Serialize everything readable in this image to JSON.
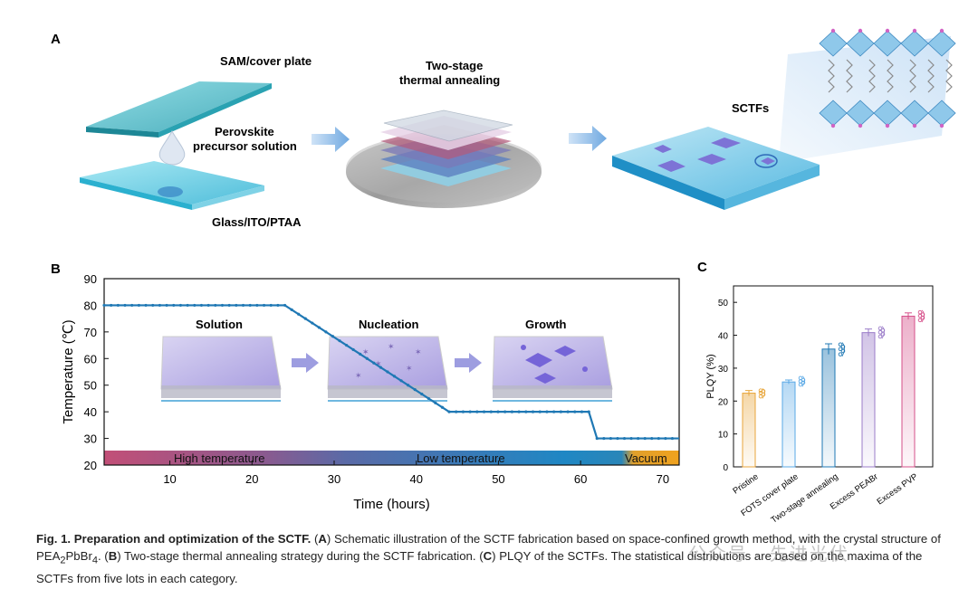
{
  "panelA": {
    "letter": "A",
    "labels": {
      "sam": "SAM/cover plate",
      "precursor_line1": "Perovskite",
      "precursor_line2": "precursor solution",
      "glass": "Glass/ITO/PTAA",
      "annealing_line1": "Two-stage",
      "annealing_line2": "thermal annealing",
      "sctfs": "SCTFs"
    }
  },
  "panelB": {
    "letter": "B",
    "insets": [
      "Solution",
      "Nucleation",
      "Growth"
    ],
    "bands": [
      "High temperature",
      "Low temperature",
      "Vacuum"
    ]
  },
  "panelC": {
    "letter": "C"
  },
  "chart_data": [
    {
      "type": "line",
      "panel": "B",
      "xlabel": "Time (hours)",
      "ylabel": "Temperature (℃)",
      "xlim": [
        2,
        72
      ],
      "ylim": [
        20,
        90
      ],
      "xticks": [
        10,
        20,
        30,
        40,
        50,
        60,
        70
      ],
      "yticks": [
        20,
        30,
        40,
        50,
        60,
        70,
        80,
        90
      ],
      "x": [
        2,
        24,
        44,
        61,
        62,
        72
      ],
      "y": [
        80,
        80,
        40,
        40,
        30,
        30
      ],
      "color": "#1f78b4"
    },
    {
      "type": "bar",
      "panel": "C",
      "ylabel": "PLQY (%)",
      "ylim": [
        0,
        55
      ],
      "yticks": [
        0,
        10,
        20,
        30,
        40,
        50
      ],
      "categories": [
        "Pristine",
        "FOTS cover plate",
        "Two-stage annealing",
        "Excess PEABr",
        "Excess PVP"
      ],
      "values": [
        22.4,
        25.8,
        35.8,
        40.8,
        45.8
      ],
      "errors": [
        0.8,
        0.6,
        1.6,
        1.1,
        1.0
      ],
      "points": [
        [
          21.4,
          22.0,
          22.5,
          23.0,
          23.2
        ],
        [
          25.0,
          25.6,
          26.0,
          26.4,
          27.0
        ],
        [
          34.2,
          35.2,
          35.8,
          36.5,
          37.2
        ],
        [
          39.6,
          40.3,
          40.9,
          41.5,
          42.1
        ],
        [
          44.6,
          45.3,
          45.9,
          46.3,
          47.0
        ]
      ],
      "colors": [
        "#e8a63c",
        "#5aa9e6",
        "#1f78b4",
        "#9b7cc9",
        "#d6508a"
      ]
    }
  ],
  "caption": {
    "lead": "Fig. 1. Preparation and optimization of the SCTF.",
    "p1a": " (",
    "A": "A",
    "p1b": ") Schematic illustration of the SCTF fabrication based on space-confined growth method, with the crystal structure of PEA",
    "sub2": "2",
    "p1c": "PbBr",
    "sub4": "4",
    "p1d": ". (",
    "B": "B",
    "p2": ") Two-stage thermal annealing strategy during the SCTF fabrication. (",
    "C": "C",
    "p3": ") PLQY of the SCTFs. The statistical distributions are based on the maxima of the SCTFs from five lots in each category."
  },
  "watermark": "公众号 · 先进光伏"
}
